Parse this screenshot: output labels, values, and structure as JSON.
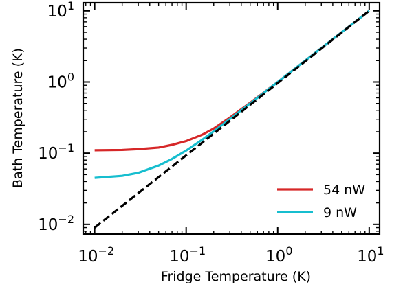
{
  "chart_data": {
    "type": "line",
    "xlabel": "Fridge Temperature (K)",
    "ylabel": "Bath Temperature (K)",
    "xscale": "log",
    "yscale": "log",
    "xlim": [
      0.0075,
      13
    ],
    "ylim": [
      0.0073,
      13
    ],
    "x_ticks": [
      {
        "value": 0.01,
        "base": "10",
        "exp": "−2"
      },
      {
        "value": 0.1,
        "base": "10",
        "exp": "−1"
      },
      {
        "value": 1,
        "base": "10",
        "exp": "0"
      },
      {
        "value": 10,
        "base": "10",
        "exp": "1"
      }
    ],
    "y_ticks": [
      {
        "value": 0.01,
        "base": "10",
        "exp": "−2"
      },
      {
        "value": 0.1,
        "base": "10",
        "exp": "−1"
      },
      {
        "value": 1,
        "base": "10",
        "exp": "0"
      },
      {
        "value": 10,
        "base": "10",
        "exp": "1"
      }
    ],
    "grid": false,
    "legend_position": "lower-right",
    "series": [
      {
        "name": "54 nW",
        "color": "#d62728",
        "style": "solid",
        "x": [
          0.01,
          0.02,
          0.03,
          0.05,
          0.07,
          0.1,
          0.15,
          0.2,
          0.3,
          0.5,
          0.7,
          1,
          2,
          5,
          10
        ],
        "y": [
          0.11,
          0.111,
          0.114,
          0.12,
          0.131,
          0.148,
          0.182,
          0.222,
          0.316,
          0.512,
          0.709,
          1.0,
          2.0,
          5.0,
          10.0
        ]
      },
      {
        "name": "9 nW",
        "color": "#17becf",
        "style": "solid",
        "x": [
          0.01,
          0.02,
          0.03,
          0.05,
          0.07,
          0.1,
          0.15,
          0.2,
          0.3,
          0.5,
          0.7,
          1,
          2,
          5,
          10
        ],
        "y": [
          0.045,
          0.048,
          0.053,
          0.067,
          0.083,
          0.109,
          0.155,
          0.203,
          0.302,
          0.5,
          0.7,
          1.0,
          2.0,
          5.0,
          10.0
        ]
      },
      {
        "name": "",
        "color": "#000000",
        "style": "dashed",
        "x": [
          0.01,
          10
        ],
        "y": [
          0.009,
          10.0
        ]
      }
    ]
  }
}
